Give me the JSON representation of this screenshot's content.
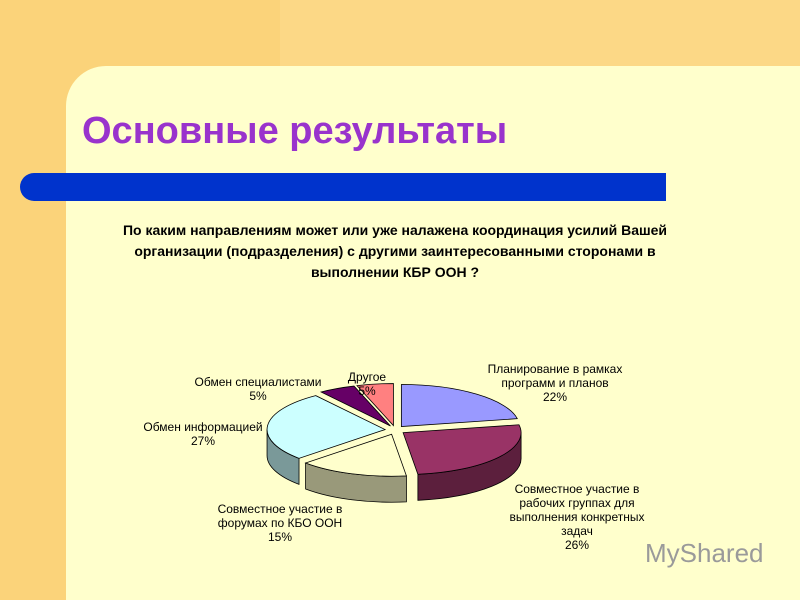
{
  "slide_title": "Основные результаты",
  "watermark": "MyShared",
  "chart_data": {
    "type": "pie",
    "title": "По каким направлениям может или уже налажена координация усилий Вашей организации (подразделения) с другими заинтересованными сторонами в выполнении КБР ООН ?",
    "categories": [
      "Планирование в рамках программ и планов",
      "Совместное участие в рабочих группах для выполнения конкретных задач",
      "Совместное участие в форумах по КБО ООН",
      "Обмен информацией",
      "Обмен специалистами",
      "Другое"
    ],
    "values": [
      22,
      26,
      15,
      27,
      5,
      5
    ],
    "value_labels": [
      "22%",
      "26%",
      "15%",
      "27%",
      "5%",
      "5%"
    ],
    "colors": [
      "#9999ff",
      "#993366",
      "#ffffcc",
      "#ccffff",
      "#660066",
      "#ff8080"
    ]
  }
}
